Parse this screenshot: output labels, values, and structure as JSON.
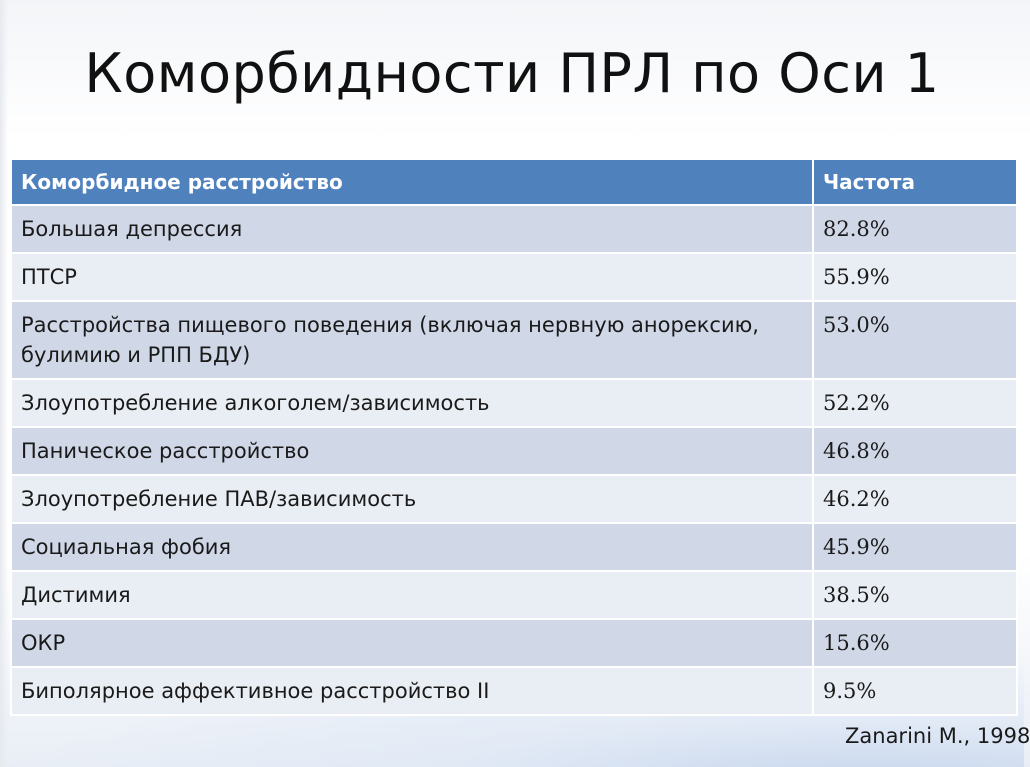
{
  "title": "Коморбидности ПРЛ по Оси 1",
  "table": {
    "headers": [
      "Коморбидное расстройство",
      "Частота"
    ],
    "rows": [
      {
        "disorder": "Большая депрессия",
        "frequency": "82.8%"
      },
      {
        "disorder": "ПТСР",
        "frequency": "55.9%"
      },
      {
        "disorder": "Расстройства пищевого поведения (включая нервную анорексию, булимию и РПП БДУ)",
        "frequency": "53.0%"
      },
      {
        "disorder": "Злоупотребление алкоголем/зависимость",
        "frequency": "52.2%"
      },
      {
        "disorder": "Паническое расстройство",
        "frequency": "46.8%"
      },
      {
        "disorder": "Злоупотребление ПАВ/зависимость",
        "frequency": "46.2%"
      },
      {
        "disorder": "Социальная фобия",
        "frequency": "45.9%"
      },
      {
        "disorder": "Дистимия",
        "frequency": "38.5%"
      },
      {
        "disorder": "ОКР",
        "frequency": "15.6%"
      },
      {
        "disorder": "Биполярное аффективное расстройство II",
        "frequency": "9.5%"
      }
    ]
  },
  "citation": "Zanarini M., 1998",
  "colors": {
    "header_bg": "#4f81bd",
    "row_dark": "#d0d8e8",
    "row_light": "#e9edf4"
  }
}
